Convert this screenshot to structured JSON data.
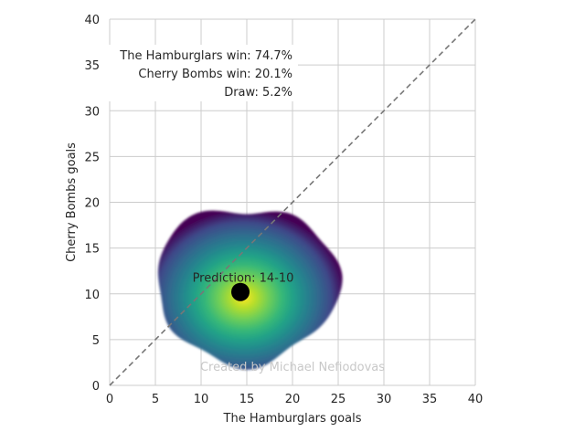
{
  "chart_data": {
    "type": "heatmap",
    "xlabel": "The Hamburglars goals",
    "ylabel": "Cherry Bombs goals",
    "xlim": [
      0,
      40
    ],
    "ylim": [
      0,
      40
    ],
    "xticks": [
      "0",
      "5",
      "10",
      "15",
      "20",
      "25",
      "30",
      "35",
      "40"
    ],
    "yticks": [
      "0",
      "5",
      "10",
      "15",
      "20",
      "25",
      "30",
      "35",
      "40"
    ],
    "grid": true,
    "reference_line": {
      "from": [
        0,
        0
      ],
      "to": [
        40,
        40
      ],
      "style": "dashed",
      "color": "#777777"
    },
    "density": {
      "colormap": "viridis",
      "center": [
        14.3,
        10.2
      ],
      "extent_x": [
        5,
        25
      ],
      "extent_y": [
        2.5,
        19.5
      ]
    },
    "prediction_point": {
      "x": 14.3,
      "y": 10.2,
      "label": "Prediction: 14-10",
      "color": "#000000"
    },
    "annotations": [
      "The Hamburglars win: 74.7%",
      "Cherry Bombs win: 20.1%",
      "Draw: 5.2%"
    ],
    "watermark": "Created by Michael Nefiodovas"
  }
}
